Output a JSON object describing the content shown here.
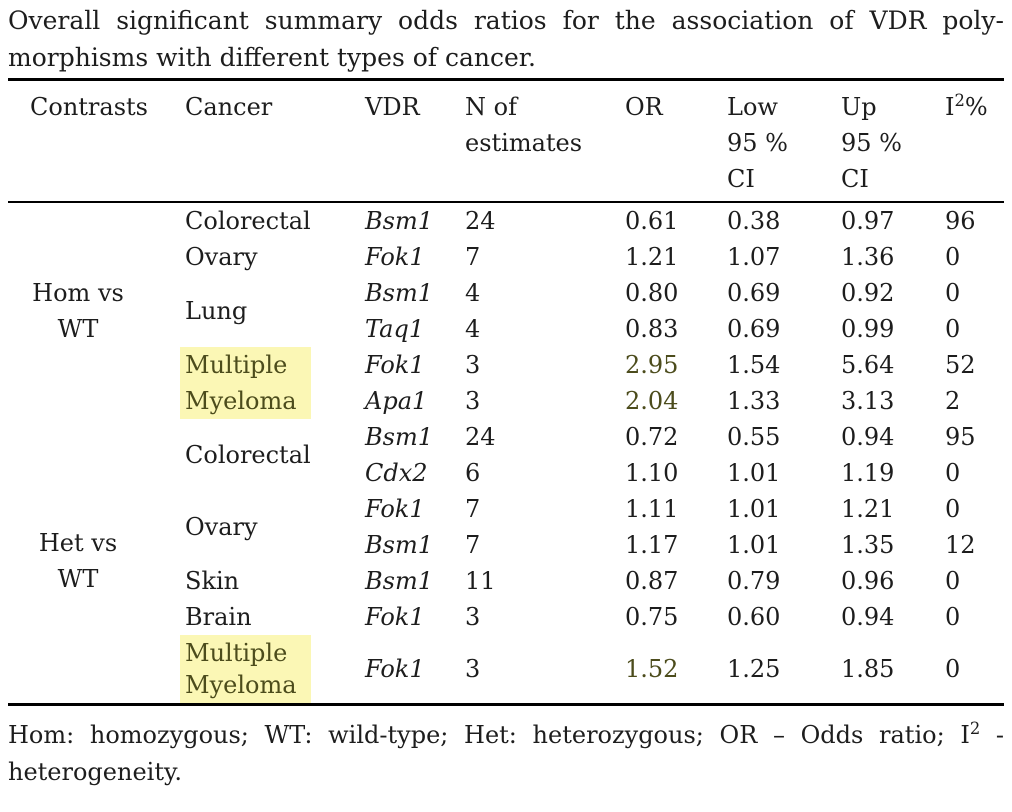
{
  "caption": {
    "line1": "Overall significant summary odds ratios for the association of VDR poly-",
    "line2": "morphisms with different types of cancer."
  },
  "header": {
    "contrasts": "Contrasts",
    "cancer": "Cancer",
    "vdr": "VDR",
    "n_line1": "N of",
    "n_line2": "estimates",
    "or": "OR",
    "low_line1": "Low",
    "low_line2": "95 %",
    "low_line3": "CI",
    "up_line1": "Up",
    "up_line2": "95 %",
    "up_line3": "CI",
    "i2_pre": "I",
    "i2_sup": "2",
    "i2_post": "%"
  },
  "sections": {
    "hom": {
      "line1": "Hom vs",
      "line2": "WT"
    },
    "het": {
      "line1": "Het vs",
      "line2": "WT"
    }
  },
  "rows": [
    {
      "cancer": "Colorectal",
      "vdr": "Bsm1",
      "n": "24",
      "or": "0.61",
      "low": "0.38",
      "up": "0.97",
      "i2": "96"
    },
    {
      "cancer": "Ovary",
      "vdr": "Fok1",
      "n": "7",
      "or": "1.21",
      "low": "1.07",
      "up": "1.36",
      "i2": "0"
    },
    {
      "cancer": "Lung",
      "vdr": "Bsm1",
      "n": "4",
      "or": "0.80",
      "low": "0.69",
      "up": "0.92",
      "i2": "0"
    },
    {
      "vdr": "Taq1",
      "n": "4",
      "or": "0.83",
      "low": "0.69",
      "up": "0.99",
      "i2": "0"
    },
    {
      "cancer_line1": "Multiple",
      "cancer_line2": "Myeloma",
      "highlighted": true,
      "vdr": "Fok1",
      "n": "3",
      "or": "2.95",
      "low": "1.54",
      "up": "5.64",
      "i2": "52"
    },
    {
      "highlighted": true,
      "vdr": "Apa1",
      "n": "3",
      "or": "2.04",
      "low": "1.33",
      "up": "3.13",
      "i2": "2"
    },
    {
      "cancer": "Colorectal",
      "vdr": "Bsm1",
      "n": "24",
      "or": "0.72",
      "low": "0.55",
      "up": "0.94",
      "i2": "95"
    },
    {
      "vdr": "Cdx2",
      "n": "6",
      "or": "1.10",
      "low": "1.01",
      "up": "1.19",
      "i2": "0"
    },
    {
      "cancer": "Ovary",
      "vdr": "Fok1",
      "n": "7",
      "or": "1.11",
      "low": "1.01",
      "up": "1.21",
      "i2": "0"
    },
    {
      "vdr": "Bsm1",
      "n": "7",
      "or": "1.17",
      "low": "1.01",
      "up": "1.35",
      "i2": "12"
    },
    {
      "cancer": "Skin",
      "vdr": "Bsm1",
      "n": "11",
      "or": "0.87",
      "low": "0.79",
      "up": "0.96",
      "i2": "0"
    },
    {
      "cancer": "Brain",
      "vdr": "Fok1",
      "n": "3",
      "or": "0.75",
      "low": "0.60",
      "up": "0.94",
      "i2": "0"
    },
    {
      "cancer_line1": "Multiple",
      "cancer_line2": "Myeloma",
      "highlighted": true,
      "vdr": "Fok1",
      "n": "3",
      "or": "1.52",
      "low": "1.25",
      "up": "1.85",
      "i2": "0"
    }
  ],
  "footnote": {
    "line1_pre": "Hom: homozygous; WT: wild-type; Het: heterozygous; OR – Odds ratio; I",
    "line1_sup": "2",
    "line1_post": " -",
    "line2": "heterogeneity."
  },
  "colors": {
    "highlight_background": "#fbf7b5",
    "highlight_text": "#4c4c1c",
    "body_text": "#1d1d1d"
  }
}
